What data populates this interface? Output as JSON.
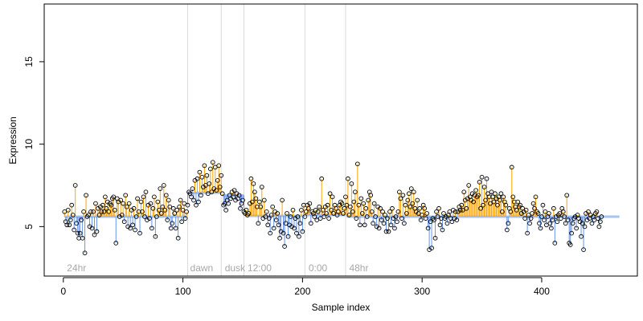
{
  "chart_data": {
    "type": "scatter",
    "xlabel": "Sample index",
    "ylabel": "Expression",
    "xlim": [
      -16,
      480
    ],
    "ylim": [
      2.0,
      18.5
    ],
    "x_ticks": [
      0,
      100,
      200,
      300,
      400
    ],
    "y_ticks": [
      5,
      10,
      15
    ],
    "grid": false,
    "legend": "none",
    "colors": {
      "above_baseline": "#FFA500",
      "below_baseline": "#6495ED",
      "baseline": "#A9C4F2",
      "points_stroke": "#000000",
      "divider": "#DADADA",
      "phase_label": "#A8A8A8"
    },
    "phases": [
      {
        "label": "24hr",
        "start": 1,
        "end": 103,
        "baseline": 5.6
      },
      {
        "label": "dawn",
        "start": 104,
        "end": 132,
        "baseline": 7.05
      },
      {
        "label": "dusk",
        "start": 133,
        "end": 151,
        "baseline": 6.9
      },
      {
        "label": "12:00",
        "start": 152,
        "end": 202,
        "baseline": 5.65
      },
      {
        "label": "0:00",
        "start": 203,
        "end": 236,
        "baseline": 5.7
      },
      {
        "label": "48hr",
        "start": 237,
        "end": 465,
        "baseline": 5.6
      }
    ],
    "dividers": [
      104,
      132,
      151,
      202,
      236
    ],
    "series": [
      {
        "values": [
          5.9,
          5.3,
          5.1,
          6.0,
          5.1,
          5.4,
          6.3,
          5.7,
          4.8,
          7.5,
          5.2,
          4.6,
          4.3,
          4.6,
          5.4,
          4.3,
          5.9,
          3.4,
          6.9,
          5.6,
          5.7,
          5.0,
          5.9,
          4.9,
          5.9,
          4.5,
          6.4,
          4.7,
          6.1,
          5.7,
          6.2,
          5.9,
          6.3,
          5.9,
          6.8,
          6.1,
          6.5,
          5.9,
          6.4,
          6.3,
          6.7,
          6.8,
          6.0,
          4.0,
          6.7,
          6.5,
          5.6,
          6.6,
          5.7,
          6.4,
          5.3,
          6.9,
          6.2,
          5.0,
          6.4,
          4.9,
          6.0,
          5.1,
          6.1,
          4.8,
          5.6,
          6.7,
          5.9,
          4.6,
          6.5,
          5.9,
          6.8,
          5.6,
          7.1,
          5.4,
          6.3,
          5.5,
          6.4,
          4.9,
          6.1,
          6.8,
          4.4,
          5.6,
          6.5,
          6.0,
          7.3,
          5.8,
          6.2,
          7.5,
          6.0,
          6.9,
          5.4,
          6.6,
          6.2,
          4.9,
          5.2,
          6.1,
          5.8,
          4.9,
          6.0,
          4.3,
          6.2,
          6.6,
          5.3,
          6.0,
          6.4,
          5.5,
          5.9,
          6.3,
          7.1,
          7.0,
          6.8,
          7.3,
          6.6,
          7.8,
          6.3,
          7.9,
          6.5,
          8.3,
          6.9,
          8.0,
          7.4,
          8.7,
          7.5,
          8.1,
          7.0,
          7.6,
          8.5,
          7.1,
          8.9,
          7.3,
          8.6,
          7.2,
          7.8,
          8.7,
          7.4,
          8.1,
          7.0,
          6.3,
          6.4,
          6.0,
          6.6,
          6.4,
          6.9,
          6.7,
          7.1,
          6.8,
          7.2,
          6.6,
          7.0,
          6.7,
          6.9,
          6.1,
          6.4,
          6.6,
          5.9,
          5.8,
          6.0,
          5.7,
          5.8,
          6.4,
          7.9,
          6.5,
          7.6,
          7.1,
          6.7,
          6.2,
          5.2,
          6.5,
          6.2,
          7.4,
          5.5,
          6.6,
          5.6,
          5.9,
          5.1,
          5.5,
          4.6,
          5.7,
          6.2,
          4.9,
          5.9,
          5.4,
          5.8,
          5.1,
          4.3,
          4.7,
          6.6,
          4.6,
          3.8,
          5.2,
          5.8,
          4.4,
          5.1,
          5.6,
          5.0,
          6.0,
          4.9,
          5.5,
          4.6,
          5.6,
          4.4,
          5.2,
          6.0,
          4.7,
          6.3,
          5.6,
          5.9,
          6.3,
          6.1,
          6.4,
          5.2,
          5.9,
          5.8,
          5.6,
          6.0,
          5.4,
          5.9,
          6.2,
          5.5,
          7.9,
          6.0,
          5.6,
          6.2,
          5.8,
          6.3,
          5.5,
          7.0,
          6.0,
          6.8,
          5.8,
          6.3,
          6.1,
          5.7,
          5.9,
          6.3,
          6.5,
          6.4,
          5.8,
          6.1,
          6.8,
          6.3,
          7.9,
          5.7,
          6.2,
          7.6,
          5.9,
          6.5,
          7.1,
          5.5,
          8.8,
          6.3,
          5.1,
          6.7,
          5.8,
          6.4,
          5.1,
          6.1,
          5.6,
          6.6,
          7.1,
          6.9,
          5.9,
          5.2,
          6.4,
          5.6,
          5.0,
          6.2,
          4.9,
          6.1,
          5.4,
          5.9,
          5.2,
          5.7,
          4.7,
          5.5,
          4.7,
          5.9,
          5.1,
          6.1,
          5.5,
          4.9,
          5.6,
          5.3,
          5.9,
          7.1,
          6.7,
          5.5,
          6.9,
          5.2,
          6.3,
          5.8,
          6.6,
          7.0,
          6.2,
          7.3,
          6.4,
          7.1,
          6.1,
          5.9,
          6.6,
          5.8,
          6.1,
          5.4,
          5.7,
          6.3,
          6.1,
          5.5,
          5.8,
          4.9,
          3.6,
          5.3,
          3.7,
          5.5,
          5.4,
          4.3,
          5.9,
          5.6,
          6.1,
          5.1,
          5.5,
          4.8,
          5.8,
          5.5,
          5.6,
          5.2,
          5.7,
          5.9,
          5.5,
          5.3,
          6.0,
          5.5,
          5.9,
          5.4,
          5.9,
          6.2,
          6.0,
          6.3,
          6.0,
          7.1,
          6.6,
          6.1,
          6.7,
          7.5,
          6.8,
          6.6,
          7.0,
          6.5,
          6.9,
          7.2,
          6.8,
          6.9,
          7.7,
          6.1,
          8.0,
          6.3,
          7.4,
          6.6,
          7.9,
          7.0,
          6.8,
          6.4,
          7.1,
          6.8,
          6.5,
          7.0,
          6.7,
          6.3,
          6.8,
          6.6,
          7.0,
          5.9,
          6.8,
          6.5,
          6.3,
          4.8,
          5.2,
          6.1,
          5.9,
          8.6,
          6.8,
          6.5,
          6.2,
          6.0,
          6.5,
          6.2,
          6.3,
          5.8,
          6.1,
          5.9,
          5.5,
          6.0,
          4.6,
          5.7,
          5.2,
          5.5,
          5.8,
          6.4,
          6.1,
          6.8,
          5.9,
          5.8,
          5.2,
          4.9,
          5.6,
          6.3,
          5.4,
          5.9,
          5.1,
          5.6,
          5.8,
          5.2,
          4.9,
          5.4,
          6.1,
          4.0,
          5.6,
          5.3,
          5.7,
          5.8,
          5.5,
          6.1,
          5.9,
          5.6,
          5.2,
          6.9,
          5.4,
          4.0,
          3.9,
          4.6,
          5.2,
          5.5,
          5.6,
          4.9,
          5.7,
          5.5,
          5.3,
          4.4,
          5.2,
          3.6,
          5.0,
          5.8,
          5.4,
          5.9,
          5.5,
          5.7,
          5.2,
          5.6,
          5.4,
          5.8,
          5.9,
          5.5,
          5.0,
          5.3,
          5.6
        ]
      }
    ]
  }
}
